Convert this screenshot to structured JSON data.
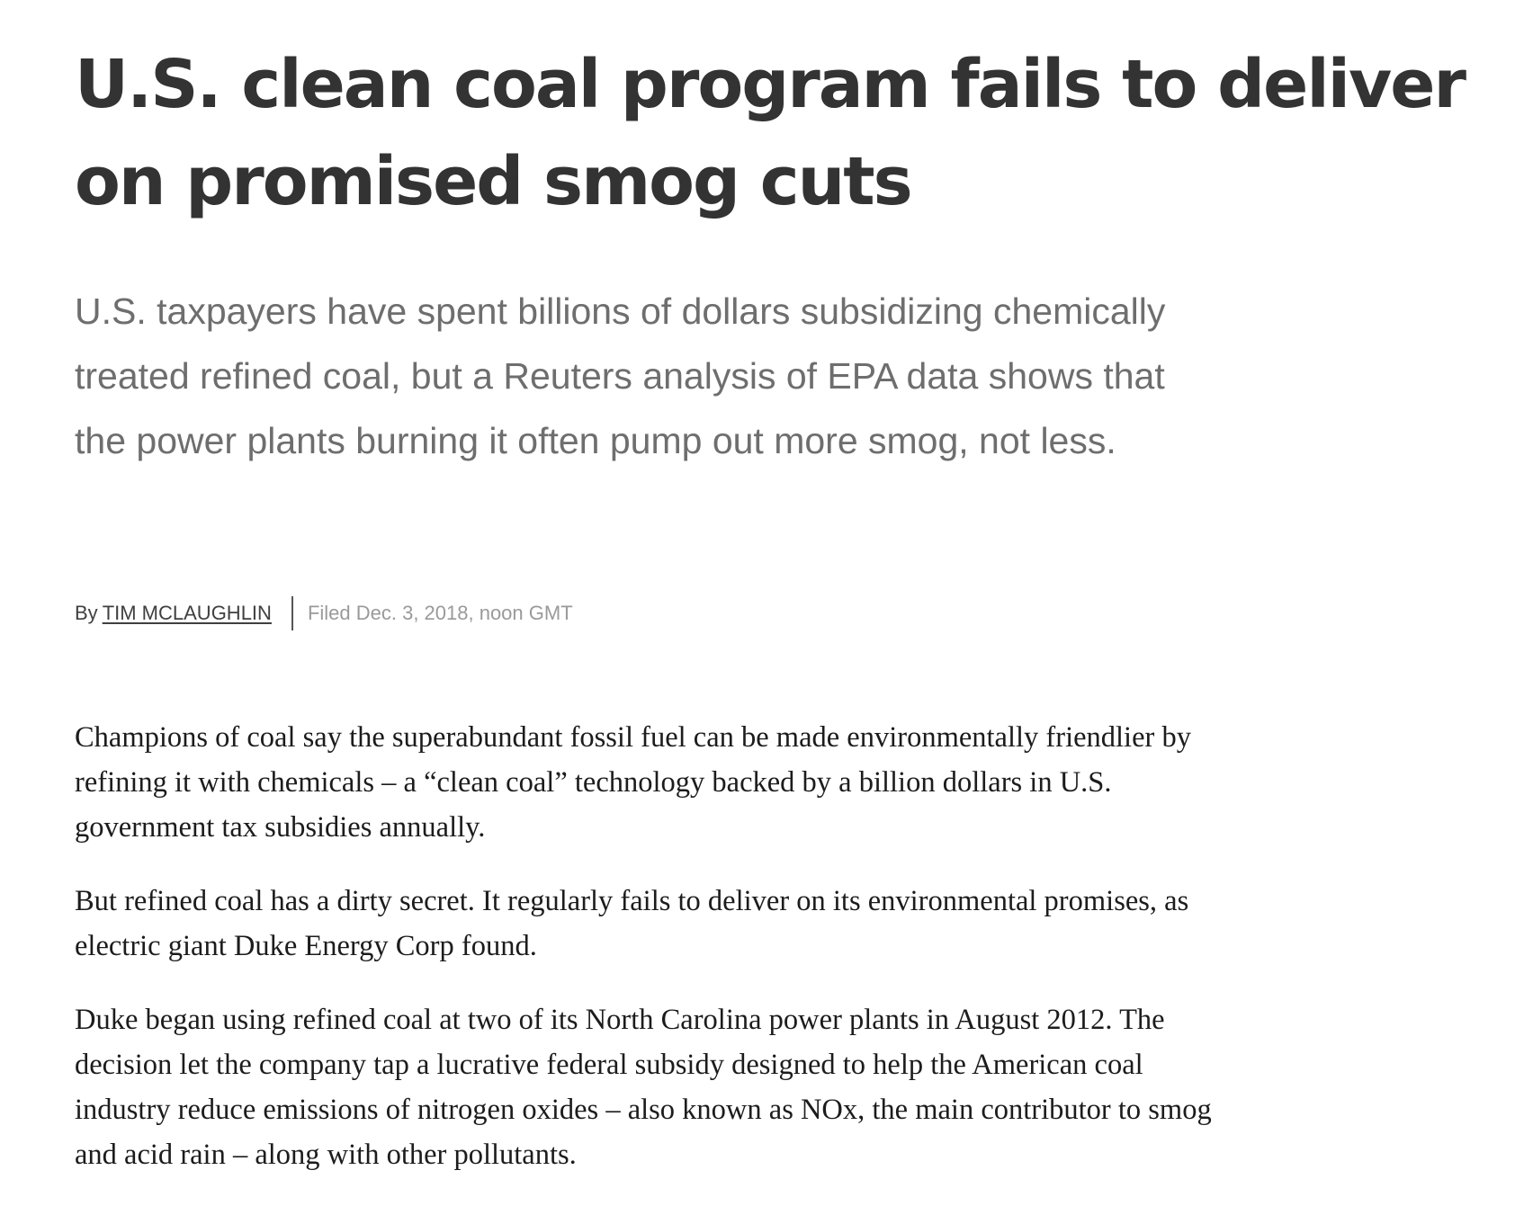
{
  "article": {
    "headline": "U.S. clean coal program fails to deliver on promised smog cuts",
    "deck": "U.S. taxpayers have spent billions of dollars subsidizing chemically treated refined coal, but a Reuters analysis of EPA data shows that the power plants burning it often pump out more smog, not less.",
    "byline": {
      "prefix": "By",
      "author": "TIM MCLAUGHLIN",
      "filed": "Filed Dec. 3, 2018, noon GMT"
    },
    "paragraphs": [
      "Champions of coal say the superabundant fossil fuel can be made environmentally friendlier by refining it with chemicals – a “clean coal” technology backed by a billion dollars in U.S. government tax subsidies annually.",
      "But refined coal has a dirty secret. It regularly fails to deliver on its environmental promises, as electric giant Duke Energy Corp found.",
      "Duke began using refined coal at two of its North Carolina power plants in August 2012. The decision let the company tap a lucrative federal subsidy designed to help the American coal industry reduce emissions of nitrogen oxides – also known as NOx, the main contributor to smog and acid rain – along with other pollutants."
    ]
  }
}
